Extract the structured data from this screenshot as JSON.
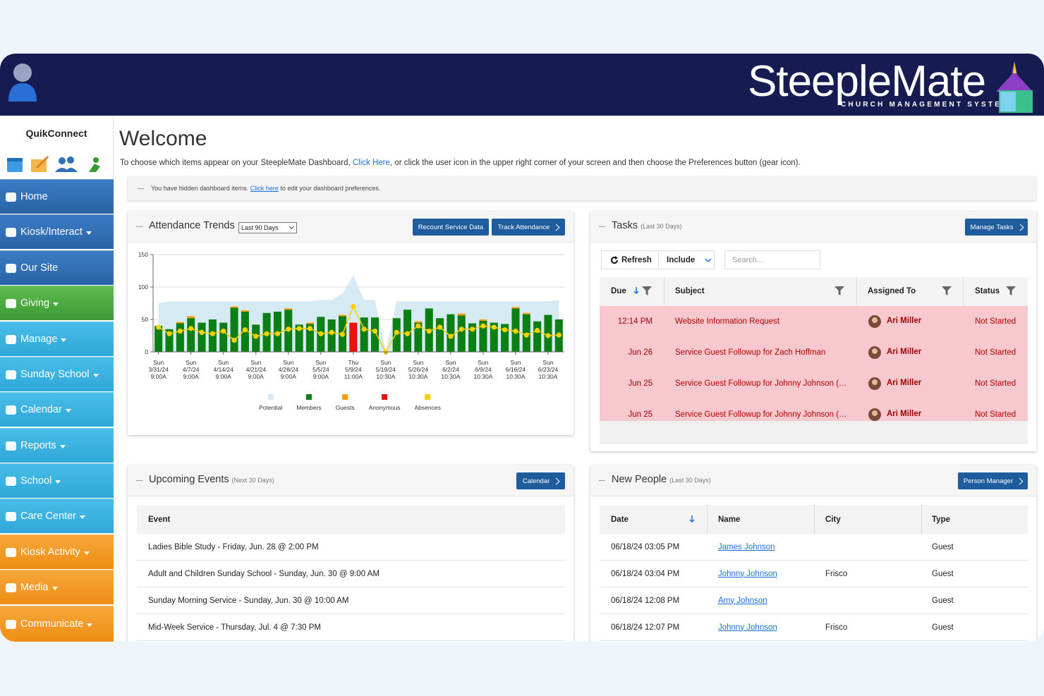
{
  "header": {
    "logo_title": "SteepleMate",
    "logo_subtitle": "CHURCH MANAGEMENT SYSTEM"
  },
  "sidebar": {
    "quikconnect": "QuikConnect",
    "menu": [
      "Home",
      "Kiosk/Interact",
      "Our Site",
      "Giving",
      "Manage",
      "Sunday School",
      "Calendar",
      "Reports",
      "School",
      "Care Center",
      "Kiosk Activity",
      "Media",
      "Communicate"
    ]
  },
  "welcome": {
    "title": "Welcome",
    "text_before": "To choose which items appear on your SteepleMate Dashboard,",
    "link": "Click Here",
    "text_after": ", or click the user icon in the upper right corner of your screen and then choose the Preferences button (gear icon)."
  },
  "notice": {
    "text_before": "You have hidden dashboard items.",
    "link": "Click here",
    "text_after": "to edit your dashboard preferences."
  },
  "attendance": {
    "title": "Attendance Trends",
    "range": "Last 90 Days",
    "buttons": [
      "Recount Service Data",
      "Track Attendance"
    ]
  },
  "chart_data": {
    "type": "bar",
    "categories": [
      "Sun 3/31/24 9:00A",
      null,
      null,
      "Sun 4/7/24 9:00A",
      null,
      null,
      "Sun 4/14/24 9:00A",
      null,
      null,
      "Sun 4/21/24 9:00A",
      null,
      null,
      "Sun 4/28/24 9:00A",
      null,
      null,
      "Sun 5/5/24 9:00A",
      null,
      null,
      "Thu 5/9/24 11:00A",
      null,
      null,
      "Sun 5/19/24 10:30A",
      null,
      null,
      "Sun 5/26/24 10:30A",
      null,
      null,
      "Sun 6/2/24 10:30A",
      null,
      null,
      "Sun 6/9/24 10:30A",
      null,
      null,
      "Sun 6/16/24 10:30A",
      null,
      null,
      "Sun 6/23/24 10:30A",
      null
    ],
    "ylim": [
      0,
      150
    ],
    "yticks": [
      0,
      50,
      100,
      150
    ],
    "grid": true,
    "series": [
      {
        "name": "Potential",
        "type": "area",
        "color": "#d6eaf3",
        "values": [
          75,
          78,
          78,
          78,
          78,
          78,
          78,
          78,
          78,
          78,
          78,
          78,
          78,
          78,
          78,
          80,
          80,
          90,
          118,
          80,
          80,
          0,
          78,
          78,
          78,
          78,
          78,
          78,
          78,
          78,
          78,
          78,
          78,
          78,
          78,
          78,
          78,
          80
        ]
      },
      {
        "name": "Members",
        "type": "bar",
        "color": "#0b7f14",
        "values": [
          40,
          35,
          44,
          52,
          45,
          50,
          45,
          68,
          62,
          42,
          60,
          62,
          65,
          42,
          43,
          54,
          50,
          55,
          0,
          53,
          53,
          0,
          52,
          65,
          45,
          67,
          52,
          58,
          56,
          44,
          48,
          45,
          43,
          67,
          58,
          47,
          57,
          50
        ]
      },
      {
        "name": "Guests",
        "type": "bar",
        "color": "#ff9a00",
        "values": [
          0,
          0,
          2,
          3,
          0,
          0,
          0,
          2,
          2,
          0,
          0,
          0,
          2,
          0,
          2,
          0,
          0,
          2,
          0,
          0,
          0,
          0,
          0,
          0,
          2,
          0,
          0,
          0,
          3,
          0,
          2,
          0,
          0,
          2,
          2,
          0,
          0,
          0
        ]
      },
      {
        "name": "Anonymous",
        "type": "bar",
        "color": "#e8120c",
        "values": [
          0,
          0,
          0,
          0,
          0,
          0,
          0,
          0,
          0,
          0,
          0,
          0,
          0,
          0,
          0,
          0,
          0,
          0,
          45,
          0,
          0,
          0,
          0,
          0,
          0,
          0,
          0,
          0,
          0,
          0,
          0,
          0,
          0,
          0,
          0,
          0,
          0,
          0
        ]
      },
      {
        "name": "Absences",
        "type": "line",
        "color": "#f7d200",
        "values": [
          38,
          28,
          32,
          36,
          30,
          28,
          32,
          18,
          34,
          24,
          28,
          28,
          35,
          36,
          36,
          28,
          30,
          27,
          70,
          35,
          32,
          0,
          30,
          28,
          40,
          32,
          38,
          24,
          35,
          35,
          40,
          38,
          34,
          32,
          26,
          33,
          25,
          26
        ]
      }
    ]
  },
  "tasks": {
    "title": "Tasks",
    "subtitle": "(Last 30 Days)",
    "button": "Manage Tasks",
    "refresh": "Refresh",
    "include": "Include",
    "search_placeholder": "Search...",
    "columns": [
      "Due",
      "Subject",
      "Assigned To",
      "Status"
    ],
    "rows": [
      [
        "12:14 PM",
        "Website Information Request",
        "Ari Miller",
        "Not Started"
      ],
      [
        "Jun 26",
        "Service Guest Followup for Zach Hoffman",
        "Ari Miller",
        "Not Started"
      ],
      [
        "Jun 25",
        "Service Guest Followup for Johnny Johnson (…",
        "Ari Miller",
        "Not Started"
      ],
      [
        "Jun 25",
        "Service Guest Followup for Johnny Johnson (…",
        "Ari Miller",
        "Not Started"
      ]
    ]
  },
  "events": {
    "title": "Upcoming Events",
    "subtitle": "(Next 30 Days)",
    "button": "Calendar",
    "column": "Event",
    "rows": [
      "Ladies Bible Study - Friday, Jun. 28 @ 2:00 PM",
      "Adult and Children Sunday School - Sunday, Jun. 30 @ 9:00 AM",
      "Sunday Morning Service - Sunday, Jun. 30 @ 10:00 AM",
      "Mid-Week Service - Thursday, Jul. 4 @ 7:30 PM"
    ]
  },
  "new_people": {
    "title": "New People",
    "subtitle": "(Last 30 Days)",
    "button": "Person Manager",
    "columns": [
      "Date",
      "Name",
      "City",
      "Type"
    ],
    "rows": [
      [
        "06/18/24 03:05 PM",
        "James Johnson",
        null,
        "Guest"
      ],
      [
        "06/18/24 03:04 PM",
        "Johnny Johnson",
        "Frisco",
        "Guest"
      ],
      [
        "06/18/24 12:08 PM",
        "Amy Johnson",
        null,
        "Guest"
      ],
      [
        "06/18/24 12:07 PM",
        "Johnny Johnson",
        "Frisco",
        "Guest"
      ]
    ]
  }
}
